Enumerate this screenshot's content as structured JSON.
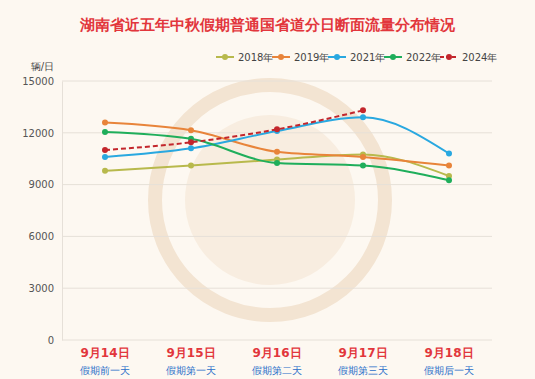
{
  "chart_data": {
    "type": "line",
    "title": "湖南省近五年中秋假期普通国省道分日断面流量分布情况",
    "y_label": "辆/日",
    "categories": [
      "9月14日",
      "9月15日",
      "9月16日",
      "9月17日",
      "9月18日"
    ],
    "category_notes": [
      "假期前一天",
      "假期第一天",
      "假期第二天",
      "假期第三天",
      "假期后一天"
    ],
    "series": [
      {
        "name": "2018年",
        "color": "#b8b94c",
        "marker": "circle",
        "line_style": "solid",
        "values": [
          9800,
          10100,
          10450,
          10750,
          9500
        ]
      },
      {
        "name": "2019年",
        "color": "#e8843a",
        "marker": "circle",
        "line_style": "solid",
        "values": [
          12600,
          12150,
          10900,
          10600,
          10100
        ]
      },
      {
        "name": "2021年",
        "color": "#29a8e0",
        "marker": "circle",
        "line_style": "solid",
        "values": [
          10600,
          11100,
          12100,
          12900,
          10800
        ]
      },
      {
        "name": "2022年",
        "color": "#1fae5b",
        "marker": "circle",
        "line_style": "solid",
        "values": [
          12050,
          11650,
          10250,
          10100,
          9250
        ]
      },
      {
        "name": "2024年",
        "color": "#c3262c",
        "marker": "circle",
        "line_style": "dashed",
        "values": [
          11000,
          11450,
          12200,
          13300,
          null
        ]
      }
    ],
    "ylim": [
      0,
      15000
    ],
    "yticks": [
      0,
      3000,
      6000,
      9000,
      12000,
      15000
    ],
    "grid": true,
    "legend": "top-right"
  }
}
